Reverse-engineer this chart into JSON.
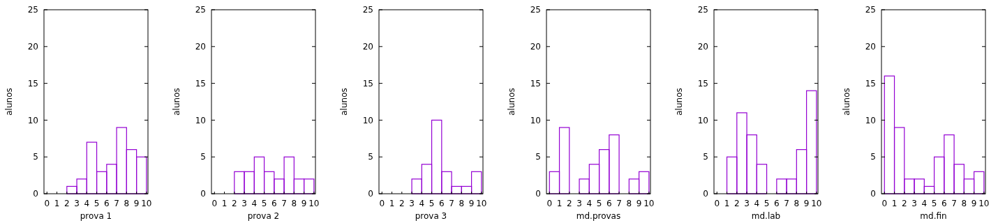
{
  "chart_data": [
    {
      "type": "histogram",
      "xlabel": "prova 1",
      "ylabel": "alunos",
      "bins": [
        0,
        1,
        2,
        3,
        4,
        5,
        6,
        7,
        8,
        9,
        10
      ],
      "values": [
        0,
        0,
        1,
        2,
        7,
        3,
        4,
        9,
        6,
        5
      ],
      "color": "#9400d3",
      "xlim": [
        -0.3,
        10.15
      ],
      "ylim": [
        0,
        25
      ],
      "xticks": [
        0,
        1,
        2,
        3,
        4,
        5,
        6,
        7,
        8,
        9,
        10
      ],
      "yticks": [
        0,
        5,
        10,
        15,
        20,
        25
      ]
    },
    {
      "type": "histogram",
      "xlabel": "prova 2",
      "ylabel": "alunos",
      "bins": [
        0,
        1,
        2,
        3,
        4,
        5,
        6,
        7,
        8,
        9,
        10
      ],
      "values": [
        0,
        0,
        3,
        3,
        5,
        3,
        2,
        5,
        2,
        2
      ],
      "color": "#9400d3",
      "xlim": [
        -0.3,
        10.15
      ],
      "ylim": [
        0,
        25
      ],
      "xticks": [
        0,
        1,
        2,
        3,
        4,
        5,
        6,
        7,
        8,
        9,
        10
      ],
      "yticks": [
        0,
        5,
        10,
        15,
        20,
        25
      ]
    },
    {
      "type": "histogram",
      "xlabel": "prova 3",
      "ylabel": "alunos",
      "bins": [
        0,
        1,
        2,
        3,
        4,
        5,
        6,
        7,
        8,
        9,
        10
      ],
      "values": [
        0,
        0,
        0,
        2,
        4,
        10,
        3,
        1,
        1,
        3
      ],
      "color": "#9400d3",
      "xlim": [
        -0.3,
        10.15
      ],
      "ylim": [
        0,
        25
      ],
      "xticks": [
        0,
        1,
        2,
        3,
        4,
        5,
        6,
        7,
        8,
        9,
        10
      ],
      "yticks": [
        0,
        5,
        10,
        15,
        20,
        25
      ]
    },
    {
      "type": "histogram",
      "xlabel": "md.provas",
      "ylabel": "alunos",
      "bins": [
        0,
        1,
        2,
        3,
        4,
        5,
        6,
        7,
        8,
        9,
        10
      ],
      "values": [
        3,
        9,
        0,
        2,
        4,
        6,
        8,
        0,
        2,
        3
      ],
      "color": "#9400d3",
      "xlim": [
        -0.3,
        10.15
      ],
      "ylim": [
        0,
        25
      ],
      "xticks": [
        0,
        1,
        2,
        3,
        4,
        5,
        6,
        7,
        8,
        9,
        10
      ],
      "yticks": [
        0,
        5,
        10,
        15,
        20,
        25
      ]
    },
    {
      "type": "histogram",
      "xlabel": "md.lab",
      "ylabel": "alunos",
      "bins": [
        0,
        1,
        2,
        3,
        4,
        5,
        6,
        7,
        8,
        9,
        10
      ],
      "values": [
        0,
        5,
        11,
        8,
        4,
        0,
        2,
        2,
        6,
        14
      ],
      "color": "#9400d3",
      "xlim": [
        -0.3,
        10.15
      ],
      "ylim": [
        0,
        25
      ],
      "xticks": [
        0,
        1,
        2,
        3,
        4,
        5,
        6,
        7,
        8,
        9,
        10
      ],
      "yticks": [
        0,
        5,
        10,
        15,
        20,
        25
      ]
    },
    {
      "type": "histogram",
      "xlabel": "md.fin",
      "ylabel": "alunos",
      "bins": [
        0,
        1,
        2,
        3,
        4,
        5,
        6,
        7,
        8,
        9,
        10
      ],
      "values": [
        16,
        9,
        2,
        2,
        1,
        5,
        8,
        4,
        2,
        3
      ],
      "color": "#9400d3",
      "xlim": [
        -0.3,
        10.15
      ],
      "ylim": [
        0,
        25
      ],
      "xticks": [
        0,
        1,
        2,
        3,
        4,
        5,
        6,
        7,
        8,
        9,
        10
      ],
      "yticks": [
        0,
        5,
        10,
        15,
        20,
        25
      ]
    }
  ]
}
